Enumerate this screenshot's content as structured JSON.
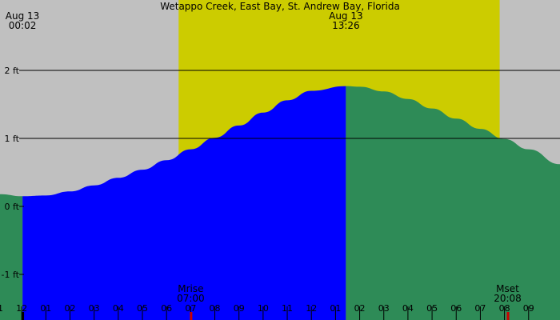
{
  "chart_data": {
    "type": "area",
    "title": "Wetappo Creek, East Bay, St. Andrew Bay, Florida",
    "xlabel": "",
    "ylabel": "",
    "x_unit": "hours after midnight Aug 13",
    "xlim": [
      -0.9,
      22.3
    ],
    "ylim": [
      -1.2,
      3.1
    ],
    "y_ticks": [
      {
        "value": 2,
        "label": "2 ft"
      },
      {
        "value": 1,
        "label": "1 ft"
      },
      {
        "value": 0,
        "label": "0 ft"
      },
      {
        "value": -1,
        "label": "-1 ft"
      }
    ],
    "x_tick_labels": [
      "11",
      "12",
      "01",
      "02",
      "03",
      "04",
      "05",
      "06",
      "07",
      "08",
      "09",
      "10",
      "11",
      "12",
      "01",
      "02",
      "03",
      "04",
      "05",
      "06",
      "07",
      "08",
      "09"
    ],
    "daylight": {
      "start": 6.5,
      "end": 19.8,
      "color": "#cccc00"
    },
    "night_color": "#c0c0c0",
    "series": [
      {
        "color": "#0000ff",
        "x": [
          0.03,
          1,
          2,
          3,
          4,
          5,
          6,
          7,
          8,
          9,
          10,
          11,
          12,
          13.43
        ],
        "values": [
          0.15,
          0.16,
          0.22,
          0.31,
          0.42,
          0.54,
          0.68,
          0.84,
          1.01,
          1.19,
          1.38,
          1.56,
          1.7,
          1.77
        ]
      },
      {
        "color": "#2e8b57",
        "x": [
          -0.9,
          0.03
        ],
        "values": [
          0.18,
          0.15
        ]
      },
      {
        "color": "#2e8b57",
        "x": [
          13.43,
          14,
          15,
          16,
          17,
          18,
          19,
          20,
          21,
          22.3
        ],
        "values": [
          1.77,
          1.76,
          1.69,
          1.58,
          1.44,
          1.29,
          1.14,
          0.99,
          0.84,
          0.62
        ]
      }
    ],
    "event_labels": [
      {
        "line1": "Aug 13",
        "line2": "00:02",
        "x": 0.03,
        "position": "top"
      },
      {
        "line1": "Aug 13",
        "line2": "13:26",
        "x": 13.43,
        "position": "top"
      },
      {
        "line1": "Mrise",
        "line2": "07:00",
        "x": 7.0,
        "position": "bottom"
      },
      {
        "line1": "Mset",
        "line2": "20:08",
        "x": 20.13,
        "position": "bottom"
      }
    ],
    "markers": [
      {
        "x": 7.0,
        "color": "#cc0000"
      },
      {
        "x": 20.13,
        "color": "#cc0000"
      },
      {
        "x": 0.03,
        "color": "#000000"
      }
    ],
    "grid": true
  }
}
